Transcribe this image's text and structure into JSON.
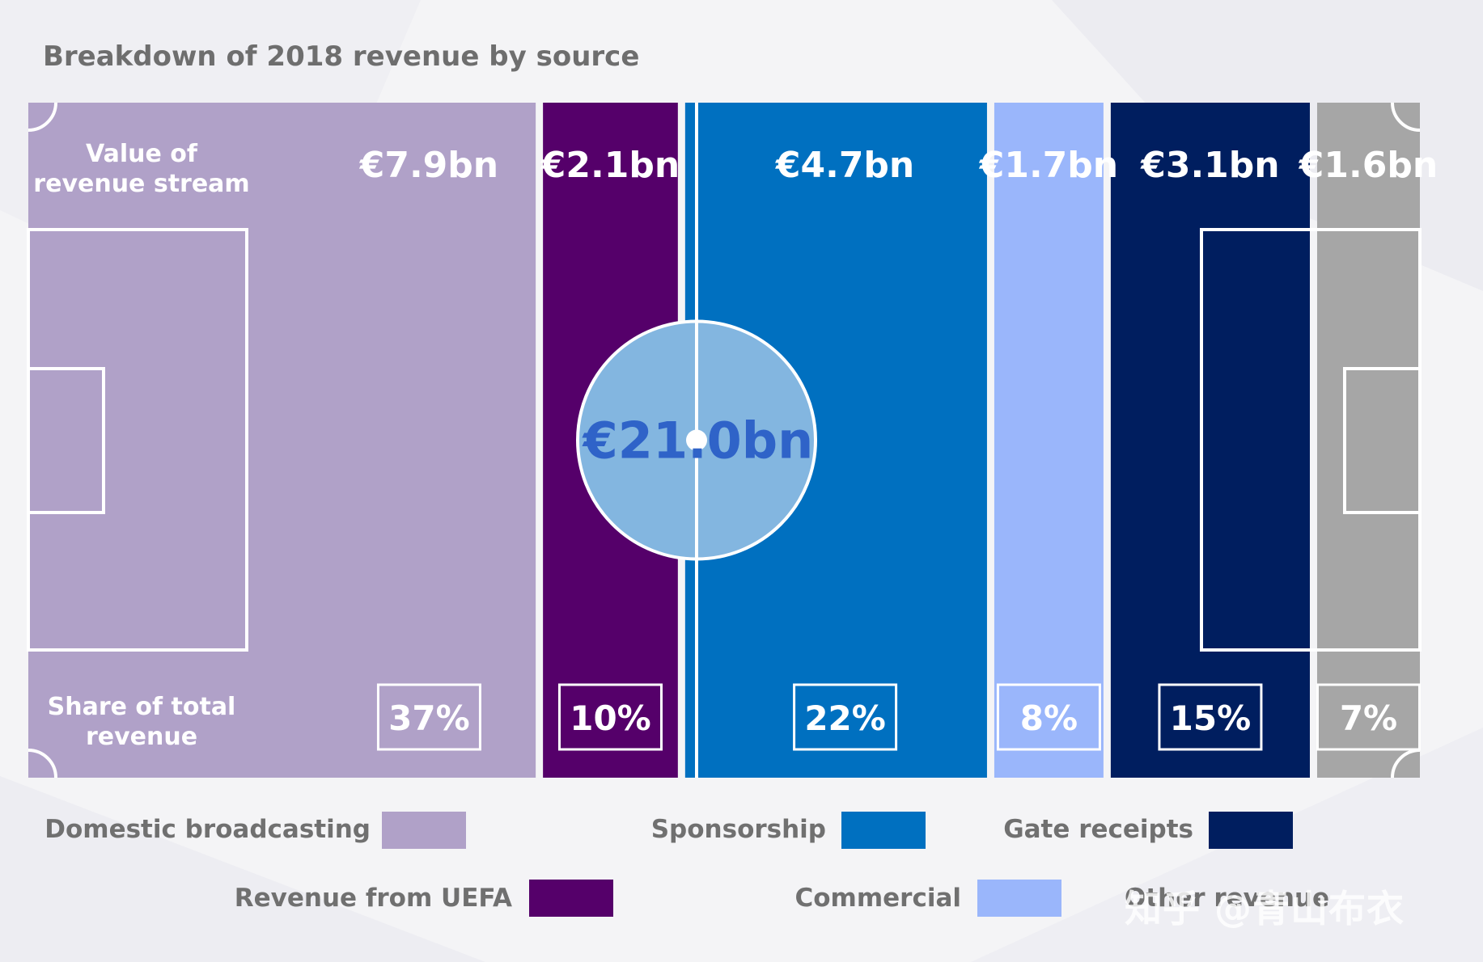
{
  "chart_data": {
    "type": "bar",
    "title": "Breakdown of 2018 revenue by source",
    "row_labels": {
      "value": [
        "Value of",
        "revenue stream"
      ],
      "share": [
        "Share of total",
        "revenue"
      ]
    },
    "total_label": "€21.0bn",
    "categories": [
      "Domestic broadcasting",
      "Revenue from UEFA",
      "Sponsorship",
      "Commercial",
      "Gate receipts",
      "Other revenue"
    ],
    "values": [
      7.9,
      2.1,
      4.7,
      1.7,
      3.1,
      1.6
    ],
    "value_labels": [
      "€7.9bn",
      "€2.1bn",
      "€4.7bn",
      "€1.7bn",
      "€3.1bn",
      "€1.6bn"
    ],
    "shares": [
      37,
      10,
      22,
      8,
      15,
      7
    ],
    "share_labels": [
      "37%",
      "10%",
      "22%",
      "8%",
      "15%",
      "7%"
    ],
    "colors": [
      "#b0a1c8",
      "#55006a",
      "#0070c0",
      "#9ab6fb",
      "#001e5f",
      "#a6a6a6"
    ],
    "legend_placement": "bottom"
  },
  "watermark": "知乎 @青山布衣"
}
